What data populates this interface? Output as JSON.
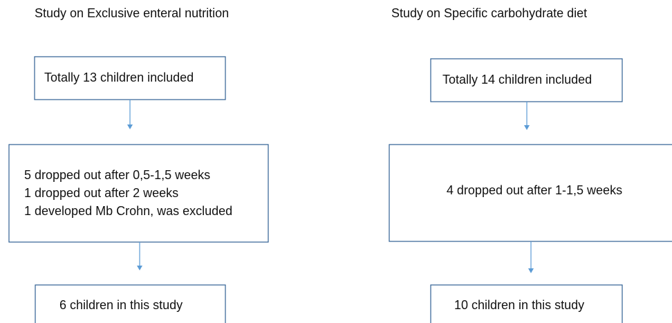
{
  "columns": [
    {
      "title": "Study on Exclusive enteral nutrition",
      "boxes": [
        {
          "lines": [
            "Totally 13 children included"
          ]
        },
        {
          "lines": [
            "5 dropped out after 0,5-1,5 weeks",
            "1 dropped out after 2 weeks",
            "1 developed Mb Crohn, was excluded"
          ]
        },
        {
          "lines": [
            "6 children in this study"
          ]
        }
      ]
    },
    {
      "title": "Study on Specific carbohydrate diet",
      "boxes": [
        {
          "lines": [
            "Totally 14 children included"
          ]
        },
        {
          "lines": [
            "4 dropped out after 1-1,5 weeks"
          ]
        },
        {
          "lines": [
            "10 children in this study"
          ]
        }
      ]
    }
  ]
}
